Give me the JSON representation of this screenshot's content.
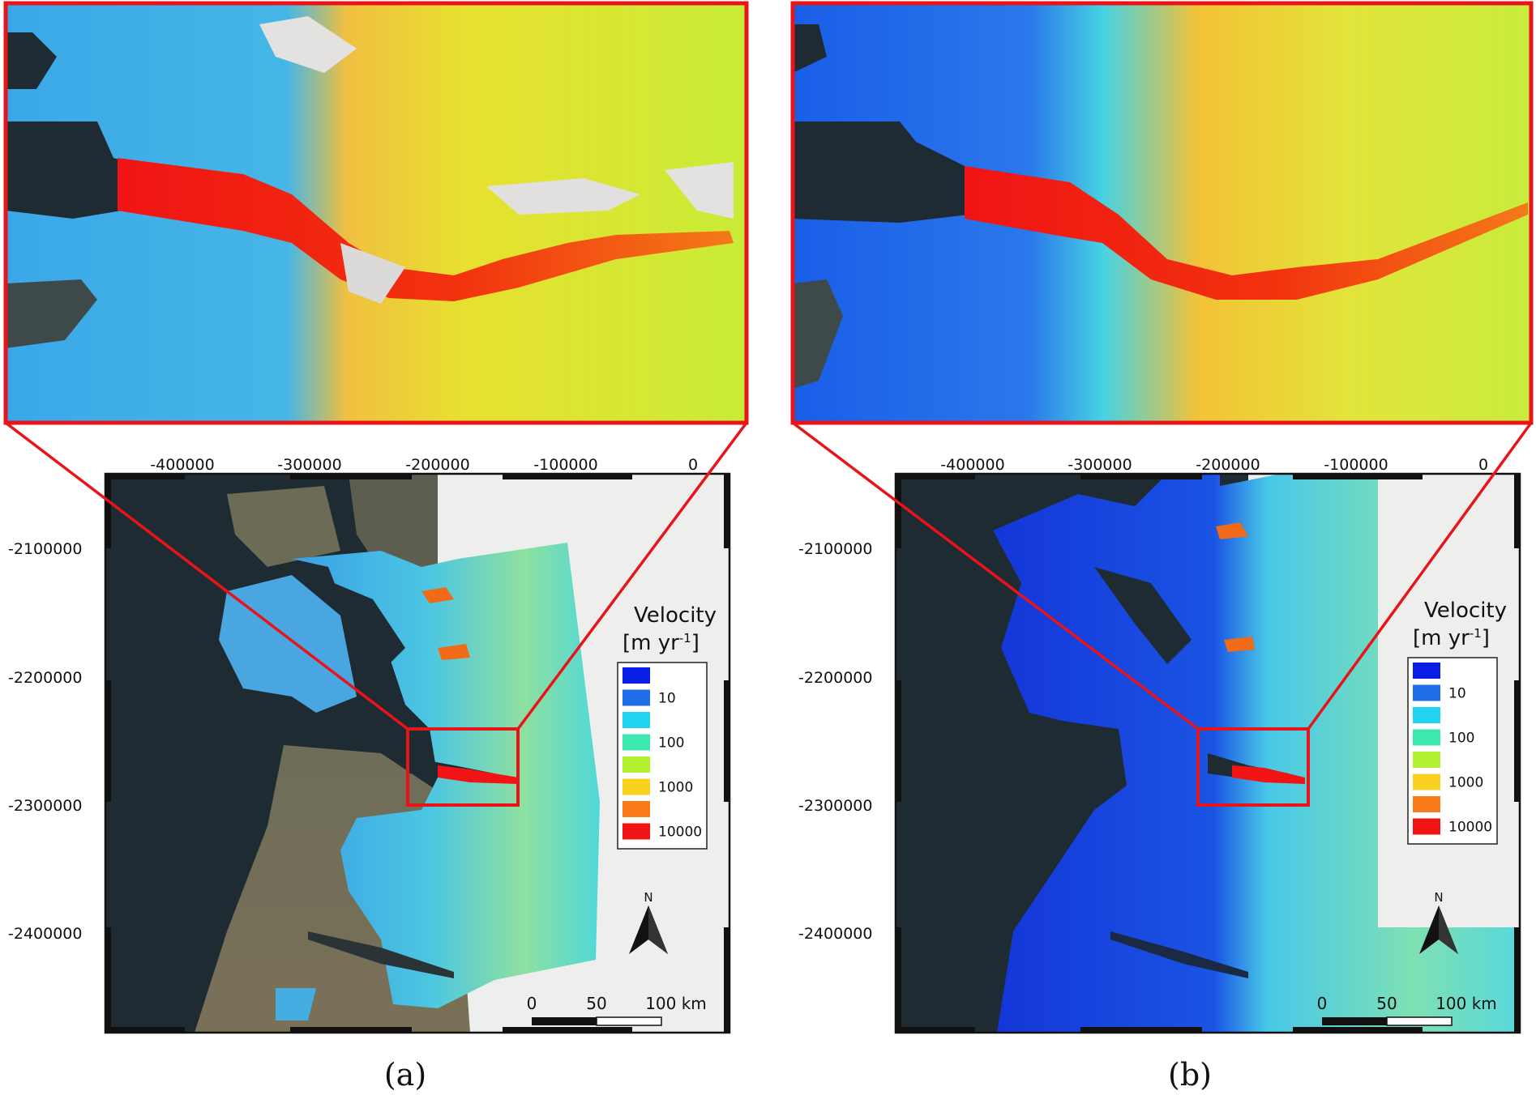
{
  "panels": [
    {
      "id": "a",
      "label": "(a)",
      "x_ticks": [
        "-400000",
        "-300000",
        "-200000",
        "-100000",
        "0"
      ],
      "y_ticks": [
        "-2100000",
        "-2200000",
        "-2300000",
        "-2400000"
      ],
      "legend": {
        "title": "Velocity",
        "unit": "[m yr",
        "unit_exp": "-1",
        "unit_close": "]",
        "entries": [
          {
            "color": "#0a1ee6",
            "label": ""
          },
          {
            "color": "#1e6eea",
            "label": "10"
          },
          {
            "color": "#22d4f0",
            "label": ""
          },
          {
            "color": "#3ce8b0",
            "label": "100"
          },
          {
            "color": "#b4f032",
            "label": ""
          },
          {
            "color": "#f8d21e",
            "label": "1000"
          },
          {
            "color": "#f87a18",
            "label": ""
          },
          {
            "color": "#f01414",
            "label": "10000"
          }
        ]
      },
      "north": "N",
      "scale": [
        "0",
        "50",
        "100 km"
      ]
    },
    {
      "id": "b",
      "label": "(b)",
      "x_ticks": [
        "-400000",
        "-300000",
        "-200000",
        "-100000",
        "0"
      ],
      "y_ticks": [
        "-2100000",
        "-2200000",
        "-2300000",
        "-2400000"
      ],
      "legend": {
        "title": "Velocity",
        "unit": "[m yr",
        "unit_exp": "-1",
        "unit_close": "]",
        "entries": [
          {
            "color": "#0a1ee6",
            "label": ""
          },
          {
            "color": "#1e6eea",
            "label": "10"
          },
          {
            "color": "#22d4f0",
            "label": ""
          },
          {
            "color": "#3ce8b0",
            "label": "100"
          },
          {
            "color": "#b4f032",
            "label": ""
          },
          {
            "color": "#f8d21e",
            "label": "1000"
          },
          {
            "color": "#f87a18",
            "label": ""
          },
          {
            "color": "#f01414",
            "label": "10000"
          }
        ]
      },
      "north": "N",
      "scale": [
        "0",
        "50",
        "100 km"
      ]
    }
  ],
  "colors": {
    "highlight": "#e8141a",
    "ocean": "#1f2b33",
    "land": "#6b6a55",
    "ice_sheet": "#eeeeec"
  }
}
